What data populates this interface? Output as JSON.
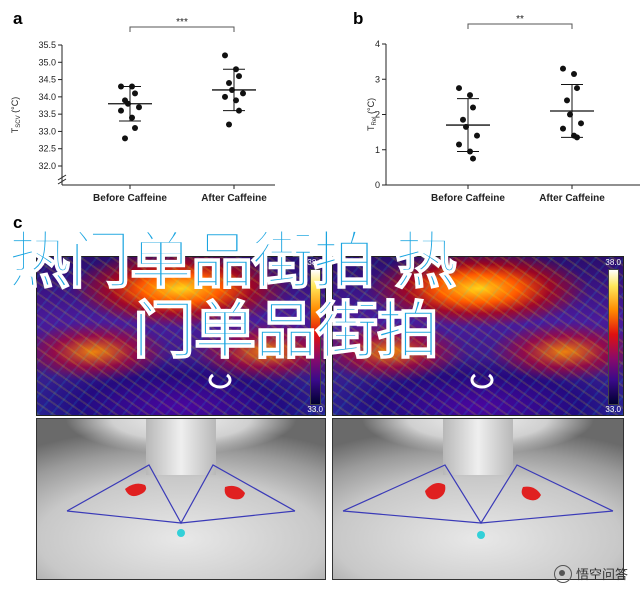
{
  "panels": {
    "a": "a",
    "b": "b",
    "c": "c"
  },
  "chart_data": [
    {
      "type": "scatter",
      "panel": "a",
      "ylabel_main": "T",
      "ylabel_sub": "SCV",
      "ylabel_unit": "(°C)",
      "categories": [
        "Before Caffeine",
        "After Caffeine"
      ],
      "ylim": [
        32.0,
        35.5
      ],
      "ybreak": true,
      "yticks": [
        "32.0",
        "32.5",
        "33.0",
        "33.5",
        "34.0",
        "34.5",
        "35.0",
        "35.5"
      ],
      "points": [
        [
          34.3,
          34.3,
          34.1,
          33.9,
          33.8,
          33.7,
          33.6,
          33.4,
          33.1,
          32.8
        ],
        [
          35.2,
          34.8,
          34.6,
          34.4,
          34.2,
          34.1,
          34.0,
          33.9,
          33.6,
          33.2
        ]
      ],
      "mean": [
        33.8,
        34.2
      ],
      "sd": [
        0.5,
        0.6
      ],
      "significance": "***"
    },
    {
      "type": "scatter",
      "panel": "b",
      "ylabel_main": "T",
      "ylabel_sub": "Rel",
      "ylabel_unit": "(°C)",
      "categories": [
        "Before Caffeine",
        "After Caffeine"
      ],
      "ylim": [
        0,
        4
      ],
      "yticks": [
        "0",
        "1",
        "2",
        "3",
        "4"
      ],
      "points": [
        [
          2.75,
          2.55,
          2.2,
          1.85,
          1.65,
          1.4,
          1.15,
          0.95,
          0.75
        ],
        [
          3.3,
          3.15,
          2.75,
          2.4,
          2.0,
          1.75,
          1.6,
          1.4,
          1.35
        ]
      ],
      "mean": [
        1.7,
        2.1
      ],
      "sd": [
        0.75,
        0.75
      ],
      "significance": "**"
    }
  ],
  "thermal": {
    "scale_max": "38.0",
    "scale_min": "33.0"
  },
  "watermark": {
    "line1": "热门单品街拍 热",
    "line2": "门单品街拍"
  },
  "logo": {
    "text": "悟空问答"
  },
  "colors": {
    "significance_bar": "#555555",
    "marker": "#111111",
    "overlay_text": "#1aa4e0",
    "landmark_line": "#3a3ab8",
    "landmark_dot": "#33d0d8",
    "heat_patch": "#e02020"
  }
}
